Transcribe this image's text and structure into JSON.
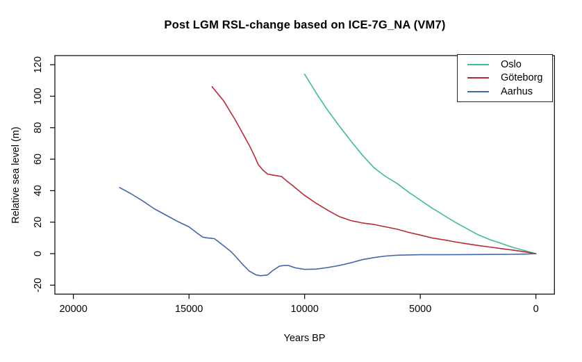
{
  "chart_data": {
    "type": "line",
    "title": "Post LGM RSL-change based on ICE-7G_NA (VM7)",
    "xlabel": "Years BP",
    "ylabel": "Relative sea level (m)",
    "x_axis": {
      "ticks": [
        20000,
        15000,
        10000,
        5000,
        0
      ],
      "tick_labels": [
        "20000",
        "15000",
        "10000",
        "5000",
        "0"
      ],
      "range": [
        20800,
        -800
      ],
      "reversed": true
    },
    "y_axis": {
      "ticks": [
        -20,
        0,
        20,
        40,
        60,
        80,
        100,
        120
      ],
      "tick_labels": [
        "-20",
        "0",
        "20",
        "40",
        "60",
        "80",
        "100",
        "120"
      ],
      "range": [
        -25.7,
        125.8
      ]
    },
    "grid": false,
    "legend": {
      "position": "top-right",
      "entries": [
        "Oslo",
        "Göteborg",
        "Aarhus"
      ]
    },
    "axis_color": "#000000",
    "series": [
      {
        "name": "Oslo",
        "color": "#3fbe8d",
        "points": [
          [
            10000,
            114
          ],
          [
            9500,
            102
          ],
          [
            9000,
            91
          ],
          [
            8500,
            81
          ],
          [
            8000,
            71.5
          ],
          [
            7500,
            62.5
          ],
          [
            7000,
            54.5
          ],
          [
            6500,
            49
          ],
          [
            6000,
            44.5
          ],
          [
            5500,
            39
          ],
          [
            5000,
            34
          ],
          [
            4500,
            29
          ],
          [
            4000,
            24.5
          ],
          [
            3500,
            20
          ],
          [
            3000,
            16
          ],
          [
            2500,
            12
          ],
          [
            2000,
            9
          ],
          [
            1500,
            6.5
          ],
          [
            1000,
            4
          ],
          [
            500,
            2
          ],
          [
            0,
            0
          ]
        ]
      },
      {
        "name": "Göteborg",
        "color": "#b52a34",
        "points": [
          [
            14000,
            106
          ],
          [
            13500,
            97
          ],
          [
            13000,
            85
          ],
          [
            12700,
            77
          ],
          [
            12400,
            69
          ],
          [
            12200,
            63
          ],
          [
            12000,
            56.5
          ],
          [
            11800,
            53
          ],
          [
            11600,
            50.5
          ],
          [
            11400,
            50
          ],
          [
            11200,
            49.5
          ],
          [
            11000,
            49
          ],
          [
            10800,
            46.5
          ],
          [
            10500,
            43
          ],
          [
            10000,
            37
          ],
          [
            9500,
            32
          ],
          [
            9000,
            27.5
          ],
          [
            8500,
            23.5
          ],
          [
            8000,
            21
          ],
          [
            7500,
            19.5
          ],
          [
            7000,
            18.5
          ],
          [
            6500,
            17
          ],
          [
            6000,
            15.5
          ],
          [
            5500,
            13.5
          ],
          [
            5000,
            11.8
          ],
          [
            4500,
            10
          ],
          [
            4000,
            8.8
          ],
          [
            3500,
            7.5
          ],
          [
            3000,
            6.3
          ],
          [
            2500,
            5.2
          ],
          [
            2000,
            4.2
          ],
          [
            1500,
            3.2
          ],
          [
            1000,
            2.3
          ],
          [
            500,
            1.2
          ],
          [
            0,
            0
          ]
        ]
      },
      {
        "name": "Aarhus",
        "color": "#4266a8",
        "points": [
          [
            18000,
            42
          ],
          [
            17500,
            38
          ],
          [
            17000,
            33.5
          ],
          [
            16500,
            28.5
          ],
          [
            16000,
            24.5
          ],
          [
            15500,
            20.5
          ],
          [
            15000,
            17
          ],
          [
            14600,
            12.5
          ],
          [
            14400,
            10.5
          ],
          [
            14200,
            10
          ],
          [
            14000,
            9.7
          ],
          [
            13900,
            9.5
          ],
          [
            13500,
            5
          ],
          [
            13200,
            1.5
          ],
          [
            13000,
            -1.5
          ],
          [
            12700,
            -6.5
          ],
          [
            12400,
            -11
          ],
          [
            12100,
            -13.5
          ],
          [
            11900,
            -14
          ],
          [
            11600,
            -13.5
          ],
          [
            11400,
            -11
          ],
          [
            11100,
            -8
          ],
          [
            10900,
            -7.5
          ],
          [
            10700,
            -7.5
          ],
          [
            10400,
            -9
          ],
          [
            10000,
            -10
          ],
          [
            9500,
            -9.8
          ],
          [
            9000,
            -8.8
          ],
          [
            8500,
            -7.5
          ],
          [
            8000,
            -5.8
          ],
          [
            7500,
            -3.8
          ],
          [
            7000,
            -2.5
          ],
          [
            6500,
            -1.5
          ],
          [
            6000,
            -1
          ],
          [
            5500,
            -0.8
          ],
          [
            5000,
            -0.7
          ],
          [
            4000,
            -0.7
          ],
          [
            3000,
            -0.6
          ],
          [
            2000,
            -0.5
          ],
          [
            1000,
            -0.4
          ],
          [
            500,
            -0.3
          ],
          [
            0,
            0
          ]
        ]
      }
    ]
  }
}
